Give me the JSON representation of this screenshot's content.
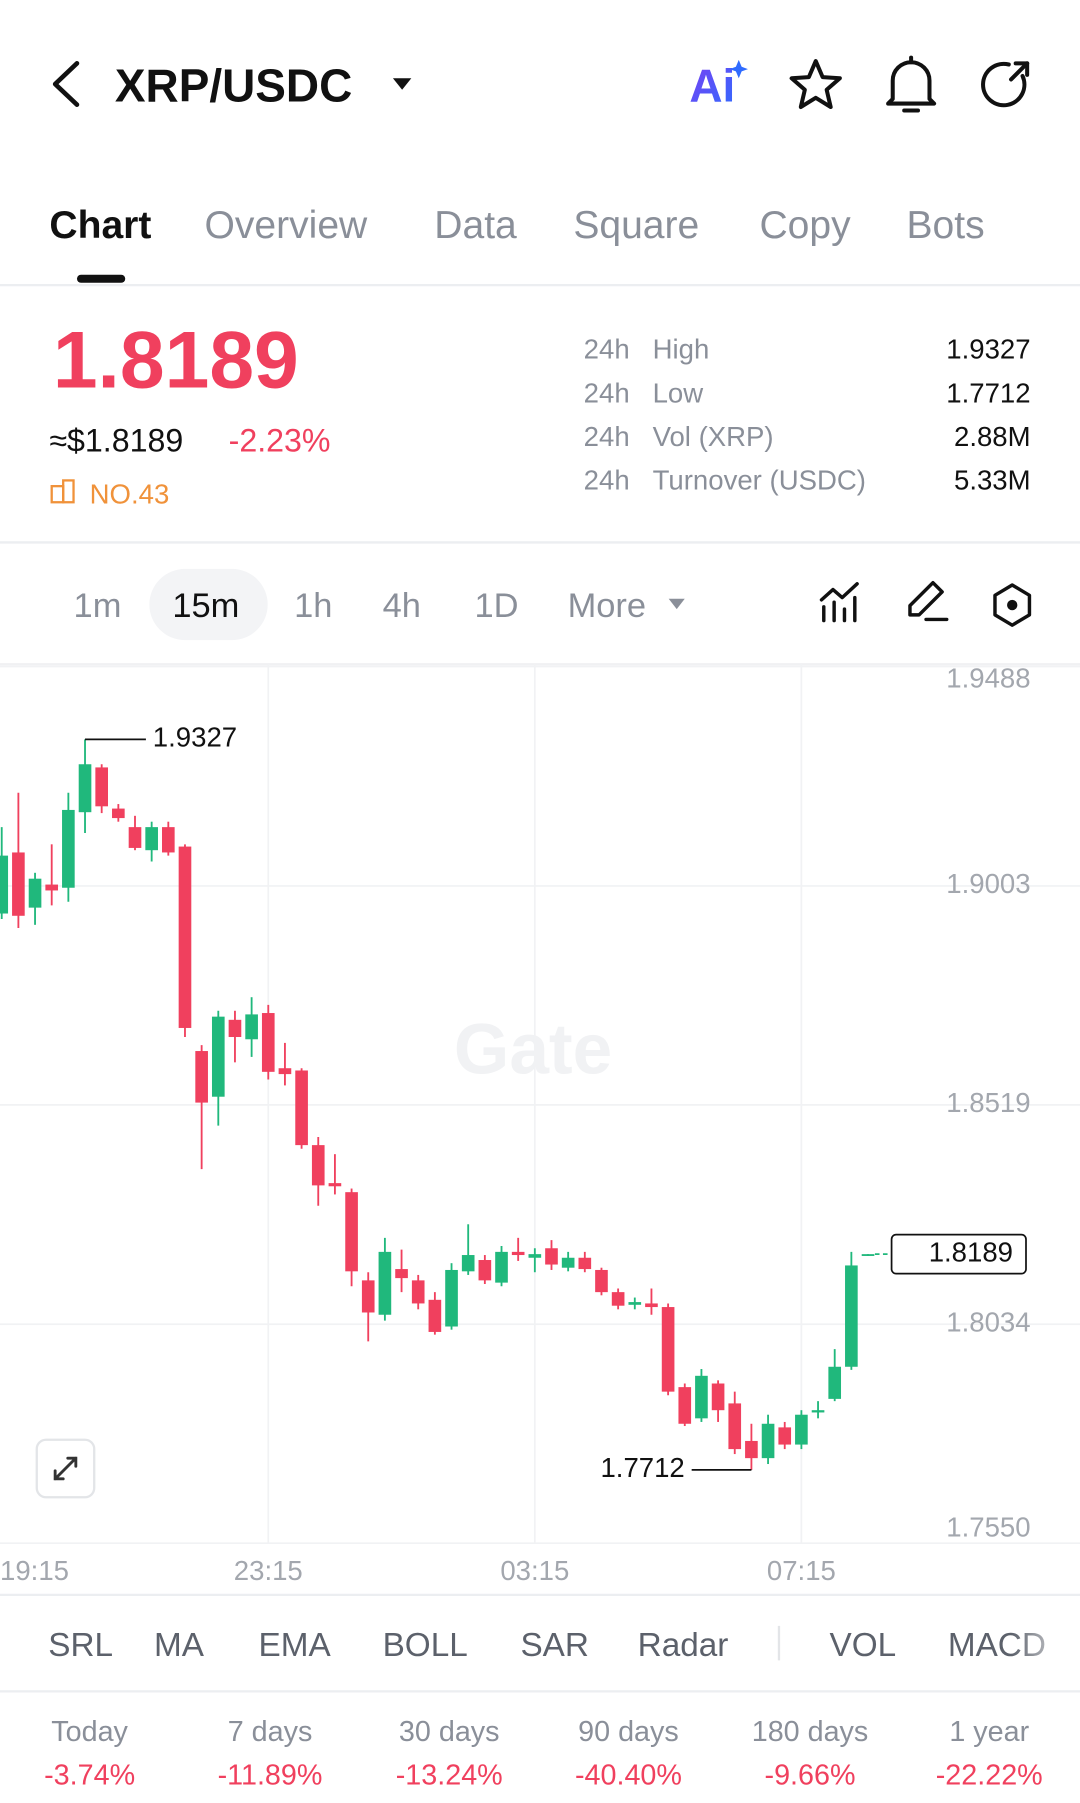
{
  "header": {
    "pair": "XRP/USDC",
    "ai": "Ai"
  },
  "tabs": [
    "Chart",
    "Overview",
    "Data",
    "Square",
    "Copy",
    "Bots"
  ],
  "price": {
    "last": "1.8189",
    "usd": "≈$1.8189",
    "change": "-2.23%",
    "rank": "NO.43"
  },
  "stats": [
    {
      "period": "24h",
      "label": "High",
      "value": "1.9327"
    },
    {
      "period": "24h",
      "label": "Low",
      "value": "1.7712"
    },
    {
      "period": "24h",
      "label": "Vol (XRP)",
      "value": "2.88M"
    },
    {
      "period": "24h",
      "label": "Turnover (USDC)",
      "value": "5.33M"
    }
  ],
  "intervals": [
    "1m",
    "15m",
    "1h",
    "4h",
    "1D",
    "More"
  ],
  "chart_data": {
    "type": "candlestick",
    "watermark": "Gate",
    "categories": [
      "19:15",
      null,
      null,
      null,
      null,
      null,
      null,
      null,
      null,
      null,
      null,
      null,
      null,
      null,
      null,
      null,
      "23:15",
      null,
      null,
      null,
      null,
      null,
      null,
      null,
      null,
      null,
      null,
      null,
      null,
      null,
      null,
      null,
      "03:15",
      null,
      null,
      null,
      null,
      null,
      null,
      null,
      null,
      null,
      null,
      null,
      null,
      null,
      null,
      null,
      "07:15",
      null,
      null,
      null,
      null
    ],
    "open": [
      1.8942,
      1.9077,
      1.8955,
      1.9006,
      1.8999,
      1.9166,
      1.9265,
      1.9174,
      1.9133,
      1.9082,
      1.9133,
      1.909,
      1.8638,
      1.8537,
      1.8707,
      1.8664,
      1.8722,
      1.86,
      1.8595,
      1.843,
      1.8346,
      1.8326,
      1.8131,
      1.8055,
      1.8156,
      1.8131,
      1.8088,
      1.8029,
      1.8151,
      1.8176,
      1.8126,
      1.8194,
      1.8181,
      1.8202,
      1.8159,
      1.8181,
      1.8154,
      1.8105,
      1.8077,
      1.808,
      1.8072,
      1.7895,
      1.7826,
      1.7903,
      1.7859,
      1.7776,
      1.7738,
      1.7806,
      1.7768,
      1.7839,
      1.7869,
      1.794,
      1.8185
    ],
    "high": [
      1.9133,
      1.9209,
      1.9032,
      1.9095,
      1.9209,
      1.9327,
      1.9272,
      1.9184,
      1.9158,
      1.9145,
      1.9145,
      1.9095,
      1.8651,
      1.8727,
      1.8727,
      1.8757,
      1.874,
      1.8656,
      1.86,
      1.8448,
      1.841,
      1.8334,
      1.8149,
      1.8225,
      1.8199,
      1.8143,
      1.8105,
      1.8169,
      1.8255,
      1.8187,
      1.8207,
      1.8225,
      1.8202,
      1.822,
      1.8194,
      1.8194,
      1.8159,
      1.8113,
      1.8093,
      1.8113,
      1.808,
      1.7903,
      1.7935,
      1.791,
      1.7885,
      1.7814,
      1.7834,
      1.7818,
      1.7844,
      1.7864,
      1.7979,
      1.8194,
      1.8189
    ],
    "low": [
      1.893,
      1.891,
      1.8917,
      1.896,
      1.8968,
      1.912,
      1.9164,
      1.9145,
      1.9082,
      1.9057,
      1.907,
      1.8669,
      1.8377,
      1.8473,
      1.8613,
      1.8625,
      1.8575,
      1.8562,
      1.8422,
      1.8296,
      1.8321,
      1.8118,
      1.7996,
      1.8042,
      1.8105,
      1.8067,
      1.8011,
      1.8022,
      1.8143,
      1.8123,
      1.8118,
      1.8174,
      1.8149,
      1.8154,
      1.8151,
      1.8149,
      1.8098,
      1.8067,
      1.8067,
      1.8055,
      1.7877,
      1.7809,
      1.7818,
      1.7818,
      1.7747,
      1.7712,
      1.7725,
      1.7758,
      1.7758,
      1.7826,
      1.7864,
      1.7933,
      1.8185
    ],
    "close": [
      1.907,
      1.8937,
      1.9019,
      1.8993,
      1.9171,
      1.9272,
      1.9179,
      1.9153,
      1.9087,
      1.9133,
      1.9077,
      1.8689,
      1.8524,
      1.8714,
      1.8669,
      1.8719,
      1.8592,
      1.8587,
      1.843,
      1.8341,
      1.8339,
      1.8151,
      1.806,
      1.8194,
      1.8136,
      1.808,
      1.8017,
      1.8154,
      1.8187,
      1.8131,
      1.8194,
      1.8187,
      1.8189,
      1.8166,
      1.8181,
      1.8156,
      1.8105,
      1.8075,
      1.8083,
      1.8072,
      1.7885,
      1.7814,
      1.792,
      1.7844,
      1.7758,
      1.7738,
      1.7814,
      1.7768,
      1.7834,
      1.7844,
      1.794,
      1.8164,
      1.8189
    ],
    "up_color": "#20b87c",
    "down_color": "#f0405e",
    "ylim": [
      1.755,
      1.9488
    ],
    "yticks": [
      {
        "value": 1.755,
        "label": "1.7550"
      },
      1.8034,
      1.8519,
      1.9003,
      1.9488
    ],
    "grid": true,
    "high_marker": 1.9327,
    "low_marker": 1.7712,
    "last_price": 1.8189
  },
  "indicators": [
    "SRL",
    "MA",
    "EMA",
    "BOLL",
    "SAR",
    "Radar",
    "VOL",
    "MACD"
  ],
  "performance": [
    {
      "period": "Today",
      "change": "-3.74%"
    },
    {
      "period": "7 days",
      "change": "-11.89%"
    },
    {
      "period": "30 days",
      "change": "-13.24%"
    },
    {
      "period": "90 days",
      "change": "-40.40%"
    },
    {
      "period": "180 days",
      "change": "-9.66%"
    },
    {
      "period": "1 year",
      "change": "-22.22%"
    }
  ]
}
